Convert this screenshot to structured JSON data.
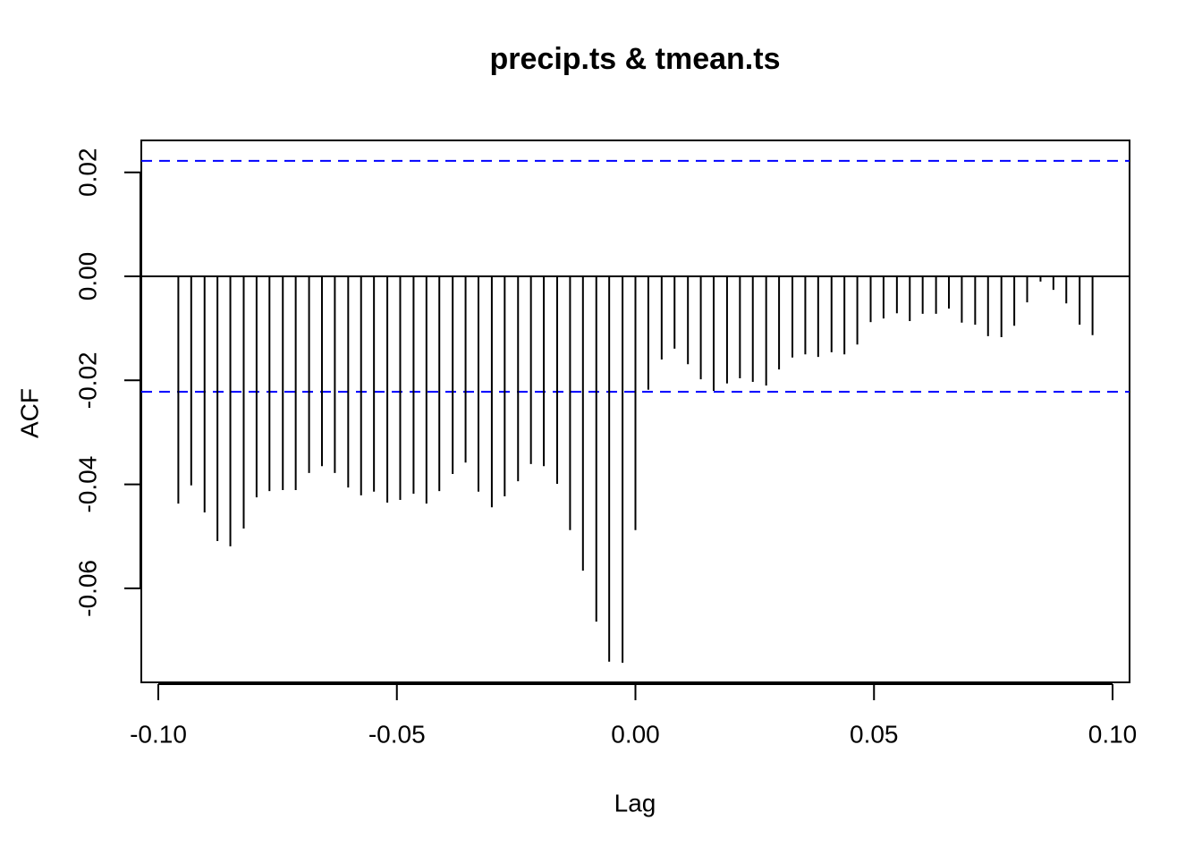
{
  "chart_data": {
    "type": "acf",
    "title": "precip.ts & tmean.ts",
    "x_label": "Lag",
    "y_label": "ACF",
    "x": [
      -0.0958,
      -0.0931,
      -0.0903,
      -0.0876,
      -0.0849,
      -0.0821,
      -0.0794,
      -0.0767,
      -0.0739,
      -0.0712,
      -0.0684,
      -0.0657,
      -0.063,
      -0.0602,
      -0.0575,
      -0.0548,
      -0.052,
      -0.0493,
      -0.0465,
      -0.0438,
      -0.0411,
      -0.0383,
      -0.0356,
      -0.0329,
      -0.0301,
      -0.0274,
      -0.0246,
      -0.0219,
      -0.0192,
      -0.0164,
      -0.0137,
      -0.011,
      -0.0082,
      -0.0055,
      -0.0027,
      0,
      0.0027,
      0.0055,
      0.0082,
      0.011,
      0.0137,
      0.0164,
      0.0192,
      0.0219,
      0.0246,
      0.0274,
      0.0301,
      0.0329,
      0.0356,
      0.0383,
      0.0411,
      0.0438,
      0.0465,
      0.0493,
      0.052,
      0.0548,
      0.0575,
      0.0602,
      0.063,
      0.0657,
      0.0684,
      0.0712,
      0.0739,
      0.0767,
      0.0794,
      0.0821,
      0.0849,
      0.0876,
      0.0903,
      0.0931,
      0.0958
    ],
    "values": [
      -0.0437,
      -0.0402,
      -0.0454,
      -0.0509,
      -0.0519,
      -0.0485,
      -0.0425,
      -0.0413,
      -0.0411,
      -0.0411,
      -0.0378,
      -0.0365,
      -0.0378,
      -0.0406,
      -0.0421,
      -0.0414,
      -0.0435,
      -0.043,
      -0.0418,
      -0.0437,
      -0.0413,
      -0.038,
      -0.0358,
      -0.0414,
      -0.0444,
      -0.0423,
      -0.0394,
      -0.0361,
      -0.0365,
      -0.0399,
      -0.0488,
      -0.0566,
      -0.0664,
      -0.0741,
      -0.0743,
      -0.0488,
      -0.0218,
      -0.016,
      -0.0139,
      -0.0169,
      -0.0198,
      -0.022,
      -0.0206,
      -0.0196,
      -0.0203,
      -0.021,
      -0.0179,
      -0.0156,
      -0.015,
      -0.0155,
      -0.0146,
      -0.015,
      -0.0131,
      -0.0088,
      -0.0081,
      -0.0071,
      -0.0086,
      -0.0072,
      -0.0072,
      -0.0062,
      -0.0089,
      -0.0093,
      -0.0115,
      -0.0117,
      -0.0095,
      -0.005,
      -0.001,
      -0.0026,
      -0.0052,
      -0.0093,
      -0.0113
    ],
    "color": "#000000",
    "ci_lines": [
      0.0222,
      -0.0222
    ],
    "ci_color": "#0000ff",
    "xlim": [
      -0.10356,
      0.10356
    ],
    "ylim": [
      -0.07807,
      0.02614
    ],
    "xticks": [
      {
        "value": -0.1,
        "label": "-0.10"
      },
      -0.05,
      {
        "value": 0,
        "label": "0.00"
      },
      0.05,
      {
        "value": 0.1,
        "label": "0.10"
      }
    ],
    "yticks": [
      -0.06,
      -0.04,
      -0.02,
      {
        "value": 0,
        "label": "0.00"
      },
      0.02
    ]
  }
}
